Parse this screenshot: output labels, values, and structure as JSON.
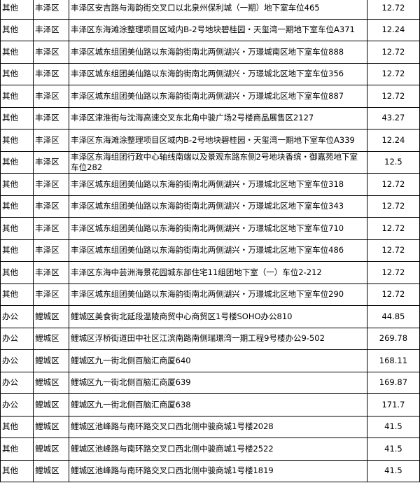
{
  "table": {
    "rows": [
      [
        "其他",
        "丰泽区",
        "丰泽区安吉路与海韵街交叉口以北泉州保利城（一期）地下室车位465",
        "12.72"
      ],
      [
        "其他",
        "丰泽区",
        "丰泽区东海滩涂整理项目区域内B-2号地块碧桂园・天玺湾一期地下室车位A371",
        "12.24"
      ],
      [
        "其他",
        "丰泽区",
        "丰泽区城东组团美仙路以东海韵街南北两侧湖兴・万璟城南区地下室车位888",
        "12.72"
      ],
      [
        "其他",
        "丰泽区",
        "丰泽区城东组团美仙路以东海韵街南北两侧湖兴・万璟城北区地下室车位356",
        "12.72"
      ],
      [
        "其他",
        "丰泽区",
        "丰泽区城东组团美仙路以东海韵街南北两侧湖兴・万璟城北区地下室车位887",
        "12.72"
      ],
      [
        "其他",
        "丰泽区",
        "丰泽区津淮街与沈海高速交叉东北角中骏广场2号楼商品展售区2127",
        "43.27"
      ],
      [
        "其他",
        "丰泽区",
        "丰泽区东海滩涂整理项目区域内B-2号地块碧桂园・天玺湾一期地下室车位A339",
        "12.24"
      ],
      [
        "其他",
        "丰泽区",
        "丰泽区东海组团行政中心轴线南端以及景观东路东侧2号地块香缤・御嘉苑地下室车位282",
        "12.5"
      ],
      [
        "其他",
        "丰泽区",
        "丰泽区城东组团美仙路以东海韵街南北两侧湖兴・万璟城北区地下室车位318",
        "12.72"
      ],
      [
        "其他",
        "丰泽区",
        "丰泽区城东组团美仙路以东海韵街南北两侧湖兴・万璟城北区地下室车位343",
        "12.72"
      ],
      [
        "其他",
        "丰泽区",
        "丰泽区城东组团美仙路以东海韵街南北两侧湖兴・万璟城北区地下室车位710",
        "12.72"
      ],
      [
        "其他",
        "丰泽区",
        "丰泽区城东组团美仙路以东海韵街南北两侧湖兴・万璟城北区地下室车位486",
        "12.72"
      ],
      [
        "其他",
        "丰泽区",
        "丰泽区东海中芸洲海景花园城东部住宅11组团地下室（一）车位2-212",
        "12.72"
      ],
      [
        "其他",
        "丰泽区",
        "丰泽区城东组团美仙路以东海韵街南北两侧湖兴・万璟城北区地下室车位290",
        "12.72"
      ],
      [
        "办公",
        "鲤城区",
        "鲤城区美食街北延段温陵商贸中心商贸区1号楼SOHO办公810",
        "44.85"
      ],
      [
        "办公",
        "鲤城区",
        "鲤城区浮桥街道田中社区江滨南路南侧瑞璟湾一期工程9号楼办公9-502",
        "269.78"
      ],
      [
        "办公",
        "鲤城区",
        "鲤城区九一街北侧百脑汇商厦640",
        "168.11"
      ],
      [
        "办公",
        "鲤城区",
        "鲤城区九一街北侧百脑汇商厦639",
        "169.87"
      ],
      [
        "办公",
        "鲤城区",
        "鲤城区九一街北侧百脑汇商厦638",
        "171.7"
      ],
      [
        "其他",
        "鲤城区",
        "鲤城区池峰路与南环路交叉口西北侧中骏商城1号楼2028",
        "41.5"
      ],
      [
        "其他",
        "鲤城区",
        "鲤城区池峰路与南环路交叉口西北侧中骏商城1号楼2522",
        "41.5"
      ],
      [
        "其他",
        "鲤城区",
        "鲤城区池峰路与南环路交叉口西北侧中骏商城1号楼1819",
        "41.5"
      ]
    ]
  }
}
